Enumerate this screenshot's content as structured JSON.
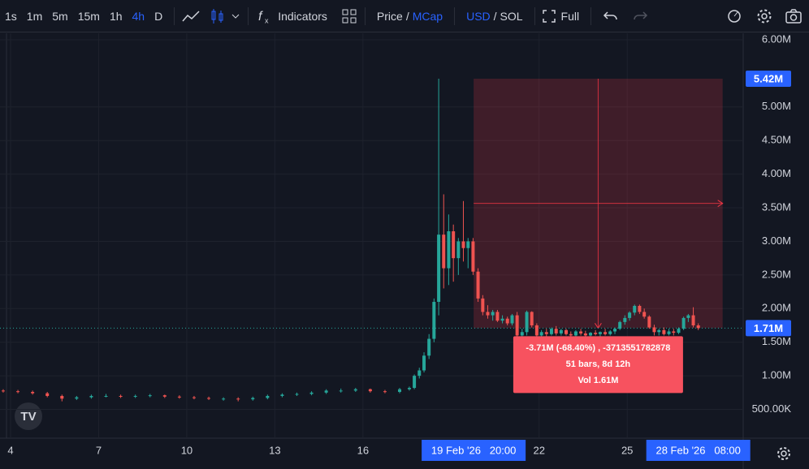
{
  "toolbar": {
    "intervals": [
      "1s",
      "1m",
      "5m",
      "15m",
      "1h",
      "4h",
      "D"
    ],
    "active_interval": 5,
    "indicators": "Indicators",
    "price": "Price",
    "separator": "/",
    "mcap": "MCap",
    "usd": "USD",
    "sol": "SOL",
    "full": "Full"
  },
  "chart_data": {
    "type": "candlestick",
    "up_color": "#26a69a",
    "down_color": "#ef5350",
    "x": [
      3.75,
      4.25,
      4.75,
      5.25,
      5.75,
      6.25,
      6.75,
      7.25,
      7.75,
      8.25,
      8.75,
      9.25,
      9.75,
      10.25,
      10.75,
      11.25,
      11.75,
      12.25,
      12.75,
      13.25,
      13.75,
      14.25,
      14.75,
      15.25,
      15.75,
      16.25,
      16.75,
      17.25,
      17.58,
      17.75,
      17.92,
      18.08,
      18.25,
      18.42,
      18.58,
      18.75,
      18.92,
      19.08,
      19.25,
      19.42,
      19.58,
      19.75,
      19.92,
      20.08,
      20.25,
      20.42,
      20.58,
      20.75,
      20.92,
      21.08,
      21.25,
      21.42,
      21.58,
      21.75,
      21.92,
      22.08,
      22.25,
      22.42,
      22.58,
      22.75,
      22.92,
      23.08,
      23.25,
      23.42,
      23.58,
      23.75,
      23.92,
      24.08,
      24.25,
      24.42,
      24.58,
      24.75,
      24.92,
      25.08,
      25.25,
      25.42,
      25.58,
      25.75,
      25.92,
      26.08,
      26.25,
      26.42,
      26.58,
      26.75,
      26.92,
      27.08,
      27.25,
      27.42
    ],
    "open": [
      0.78,
      0.77,
      0.76,
      0.74,
      0.7,
      0.66,
      0.68,
      0.7,
      0.7,
      0.69,
      0.7,
      0.71,
      0.69,
      0.68,
      0.67,
      0.66,
      0.66,
      0.65,
      0.67,
      0.7,
      0.72,
      0.73,
      0.75,
      0.78,
      0.78,
      0.8,
      0.77,
      0.76,
      0.8,
      0.82,
      1.0,
      1.08,
      1.3,
      1.55,
      2.1,
      3.1,
      2.6,
      3.15,
      2.75,
      3.0,
      2.9,
      3.0,
      2.55,
      2.15,
      1.95,
      1.9,
      1.95,
      1.82,
      1.85,
      1.78,
      1.9,
      1.6,
      1.65,
      1.95,
      1.75,
      1.6,
      1.65,
      1.62,
      1.7,
      1.63,
      1.68,
      1.62,
      1.6,
      1.66,
      1.63,
      1.6,
      1.64,
      1.62,
      1.65,
      1.62,
      1.66,
      1.7,
      1.8,
      1.86,
      1.94,
      2.04,
      1.95,
      1.88,
      1.72,
      1.65,
      1.68,
      1.62,
      1.66,
      1.64,
      1.7,
      1.86,
      1.9,
      1.75
    ],
    "high": [
      0.8,
      0.79,
      0.78,
      0.76,
      0.72,
      0.7,
      0.72,
      0.73,
      0.72,
      0.72,
      0.73,
      0.72,
      0.71,
      0.7,
      0.69,
      0.68,
      0.68,
      0.69,
      0.72,
      0.74,
      0.75,
      0.77,
      0.8,
      0.81,
      0.82,
      0.81,
      0.79,
      0.82,
      0.84,
      1.02,
      1.12,
      1.35,
      1.62,
      2.15,
      5.42,
      3.7,
      3.4,
      3.25,
      3.05,
      3.6,
      3.05,
      3.05,
      2.6,
      2.2,
      2.05,
      1.98,
      1.98,
      1.9,
      1.88,
      1.92,
      1.95,
      1.7,
      1.97,
      1.96,
      1.78,
      1.68,
      1.7,
      1.72,
      1.74,
      1.7,
      1.7,
      1.66,
      1.68,
      1.7,
      1.67,
      1.65,
      1.68,
      1.66,
      1.7,
      1.68,
      1.72,
      1.82,
      1.9,
      1.96,
      2.06,
      2.06,
      2.0,
      1.9,
      1.76,
      1.7,
      1.72,
      1.7,
      1.7,
      1.72,
      1.88,
      1.92,
      2.02,
      1.78
    ],
    "low": [
      0.75,
      0.74,
      0.72,
      0.68,
      0.62,
      0.64,
      0.66,
      0.68,
      0.67,
      0.67,
      0.68,
      0.67,
      0.66,
      0.65,
      0.64,
      0.63,
      0.62,
      0.63,
      0.65,
      0.68,
      0.7,
      0.71,
      0.73,
      0.75,
      0.76,
      0.75,
      0.74,
      0.74,
      0.78,
      0.8,
      0.96,
      1.05,
      1.25,
      1.5,
      1.9,
      2.3,
      2.35,
      2.4,
      2.5,
      2.7,
      2.6,
      2.5,
      2.1,
      1.9,
      1.85,
      1.82,
      1.8,
      1.78,
      1.75,
      1.75,
      1.58,
      1.55,
      1.6,
      1.72,
      1.58,
      1.55,
      1.58,
      1.6,
      1.6,
      1.6,
      1.6,
      1.56,
      1.58,
      1.6,
      1.58,
      1.57,
      1.6,
      1.58,
      1.6,
      1.6,
      1.62,
      1.68,
      1.76,
      1.82,
      1.9,
      1.92,
      1.85,
      1.7,
      1.6,
      1.6,
      1.6,
      1.6,
      1.6,
      1.62,
      1.68,
      1.8,
      1.72,
      1.68
    ],
    "close": [
      0.77,
      0.76,
      0.74,
      0.7,
      0.66,
      0.68,
      0.7,
      0.7,
      0.69,
      0.7,
      0.71,
      0.69,
      0.68,
      0.67,
      0.66,
      0.66,
      0.65,
      0.67,
      0.7,
      0.72,
      0.73,
      0.75,
      0.78,
      0.78,
      0.8,
      0.77,
      0.76,
      0.8,
      0.82,
      1.0,
      1.08,
      1.3,
      1.55,
      2.1,
      3.1,
      2.6,
      3.15,
      2.75,
      3.0,
      2.9,
      3.0,
      2.55,
      2.15,
      1.95,
      1.9,
      1.95,
      1.82,
      1.85,
      1.78,
      1.9,
      1.6,
      1.65,
      1.95,
      1.75,
      1.6,
      1.65,
      1.62,
      1.7,
      1.63,
      1.68,
      1.62,
      1.6,
      1.66,
      1.63,
      1.6,
      1.64,
      1.62,
      1.65,
      1.62,
      1.66,
      1.7,
      1.8,
      1.86,
      1.94,
      2.04,
      1.95,
      1.88,
      1.72,
      1.65,
      1.68,
      1.62,
      1.66,
      1.64,
      1.7,
      1.86,
      1.9,
      1.75,
      1.71
    ],
    "xlim": [
      3.64,
      28.95
    ],
    "ylim": [
      0.072,
      6.096
    ],
    "xticks": [
      {
        "value": 4,
        "label": "4"
      },
      {
        "value": 7,
        "label": "7"
      },
      {
        "value": 10,
        "label": "10"
      },
      {
        "value": 13,
        "label": "13"
      },
      {
        "value": 16,
        "label": "16"
      },
      {
        "value": 22,
        "label": "22"
      },
      {
        "value": 25,
        "label": "25"
      }
    ],
    "yticks": [
      {
        "value": 6,
        "label": "6.00M"
      },
      {
        "value": 5,
        "label": "5.00M"
      },
      {
        "value": 4.5,
        "label": "4.50M"
      },
      {
        "value": 4,
        "label": "4.00M"
      },
      {
        "value": 3.5,
        "label": "3.50M"
      },
      {
        "value": 3,
        "label": "3.00M"
      },
      {
        "value": 2.5,
        "label": "2.50M"
      },
      {
        "value": 2,
        "label": "2.00M"
      },
      {
        "value": 1.5,
        "label": "1.50M"
      },
      {
        "value": 1,
        "label": "1.00M"
      },
      {
        "value": 0.5,
        "label": "500.00K"
      }
    ],
    "grid": true,
    "price_line": 1.71,
    "price_labels": [
      {
        "value": 5.42,
        "label": "5.42M"
      },
      {
        "value": 1.71,
        "label": "1.71M"
      }
    ],
    "time_labels": [
      {
        "value": 19.77,
        "label": "19 Feb '26   20:00"
      },
      {
        "value": 27.42,
        "label": "28 Feb '26   08:00"
      }
    ],
    "measure": {
      "x": [
        19.77,
        28.25
      ],
      "y": [
        5.42,
        1.71
      ],
      "lines": [
        "-3.71M (-68.40%) , -3713551782878",
        "51 bars, 8d 12h",
        "Vol 1.61M"
      ]
    }
  }
}
